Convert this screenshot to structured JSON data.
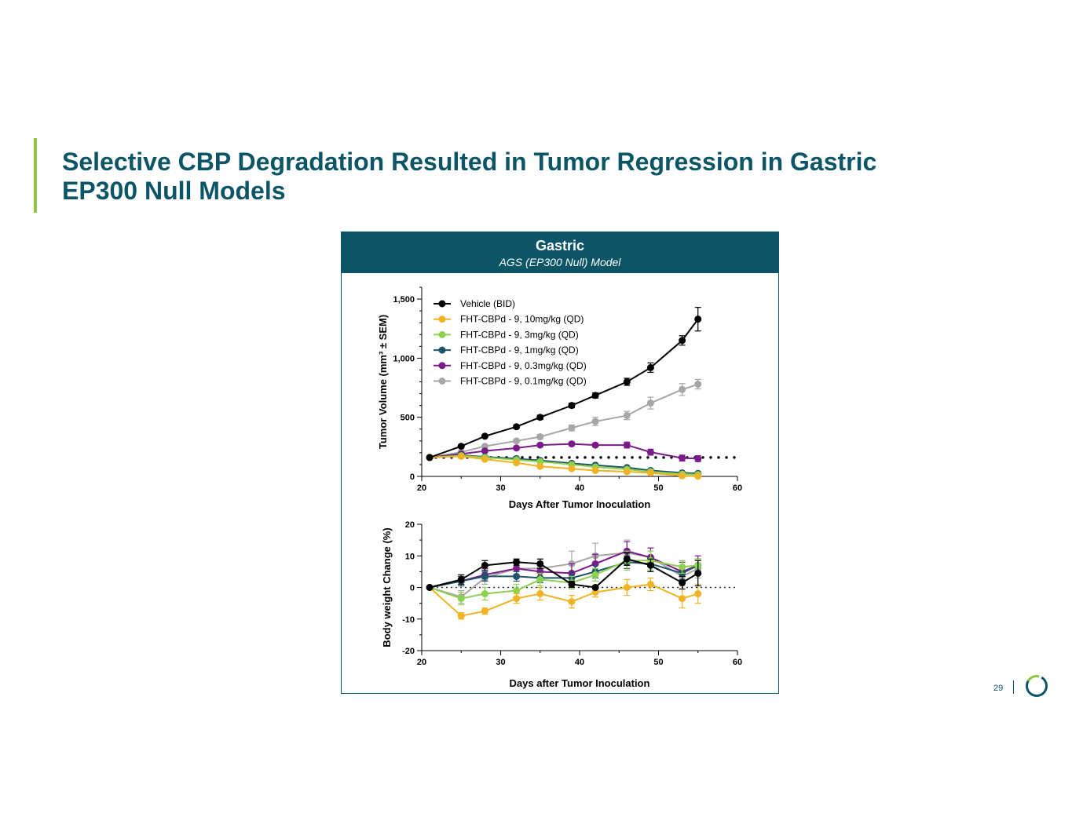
{
  "slide": {
    "title_line1": "Selective CBP Degradation Resulted in Tumor Regression in Gastric",
    "title_line2": "EP300 Null Models",
    "page_number": "29",
    "accent_color": "#8dc63f",
    "brand_color": "#0c5566",
    "logo_icon": "ring-logo-icon"
  },
  "panel": {
    "title": "Gastric",
    "subtitle": "AGS (EP300 Null) Model"
  },
  "chart_data": [
    {
      "type": "line",
      "xlabel": "Days After Tumor Inoculation",
      "ylabel": "Tumor Volume (mm³ ± SEM)",
      "xlim": [
        20,
        60
      ],
      "ylim": [
        0,
        1600
      ],
      "xticks": [
        "20",
        "30",
        "40",
        "50",
        "60"
      ],
      "yticks": [
        {
          "v": 0,
          "label": "0"
        },
        {
          "v": 500,
          "label": "500"
        },
        {
          "v": 1000,
          "label": "1,000"
        },
        {
          "v": 1500,
          "label": "1,500"
        }
      ],
      "reference_line": 160,
      "legend_position": "top-left",
      "x": [
        21,
        25,
        28,
        32,
        35,
        39,
        42,
        46,
        49,
        53,
        55
      ],
      "series": [
        {
          "name": "Vehicle (BID)",
          "color": "#000000",
          "values": [
            160,
            255,
            340,
            420,
            500,
            600,
            685,
            800,
            920,
            1150,
            1330
          ],
          "errors": [
            0,
            10,
            12,
            15,
            18,
            20,
            22,
            30,
            40,
            40,
            100
          ]
        },
        {
          "name": "FHT-CBPd - 9, 10mg/kg (QD)",
          "color": "#f0b323",
          "values": [
            160,
            170,
            145,
            115,
            85,
            65,
            50,
            40,
            30,
            5,
            2
          ],
          "errors": [
            0,
            8,
            8,
            8,
            8,
            6,
            6,
            5,
            5,
            3,
            2
          ]
        },
        {
          "name": "FHT-CBPd - 9, 3mg/kg (QD)",
          "color": "#8dd14f",
          "values": [
            160,
            175,
            160,
            140,
            125,
            100,
            80,
            60,
            40,
            20,
            15
          ],
          "errors": [
            0,
            8,
            8,
            8,
            8,
            6,
            6,
            5,
            5,
            3,
            2
          ]
        },
        {
          "name": "FHT-CBPd - 9, 1mg/kg (QD)",
          "color": "#1e5467",
          "values": [
            160,
            180,
            165,
            150,
            135,
            110,
            95,
            75,
            50,
            30,
            25
          ],
          "errors": [
            0,
            8,
            8,
            8,
            8,
            6,
            6,
            5,
            5,
            3,
            2
          ]
        },
        {
          "name": "FHT-CBPd - 9, 0.3mg/kg (QD)",
          "color": "#7b1a8a",
          "values": [
            160,
            190,
            215,
            240,
            265,
            275,
            265,
            265,
            205,
            155,
            150
          ],
          "errors": [
            0,
            10,
            10,
            12,
            12,
            15,
            15,
            25,
            25,
            25,
            25
          ]
        },
        {
          "name": "FHT-CBPd - 9, 0.1mg/kg (QD)",
          "color": "#a6a6a6",
          "values": [
            160,
            205,
            255,
            300,
            335,
            410,
            465,
            515,
            620,
            735,
            780
          ],
          "errors": [
            0,
            10,
            12,
            15,
            18,
            25,
            35,
            35,
            50,
            50,
            40
          ]
        }
      ]
    },
    {
      "type": "line",
      "xlabel": "Days after Tumor Inoculation",
      "ylabel": "Body weight Change (%)",
      "xlim": [
        20,
        60
      ],
      "ylim": [
        -20,
        20
      ],
      "xticks": [
        "20",
        "30",
        "40",
        "50",
        "60"
      ],
      "yticks": [
        {
          "v": -20,
          "label": "-20"
        },
        {
          "v": -10,
          "label": "-10"
        },
        {
          "v": 0,
          "label": "0"
        },
        {
          "v": 10,
          "label": "10"
        },
        {
          "v": 20,
          "label": "20"
        }
      ],
      "reference_line": 0,
      "x": [
        21,
        25,
        28,
        32,
        35,
        39,
        42,
        46,
        49,
        53,
        55
      ],
      "series": [
        {
          "name": "Vehicle (BID)",
          "color": "#000000",
          "values": [
            0,
            2.5,
            7,
            8,
            7.5,
            1,
            0,
            9,
            7,
            1.5,
            4.5
          ],
          "errors": [
            0,
            1.5,
            1.5,
            1,
            1.5,
            1,
            0.5,
            2,
            2,
            2,
            4
          ]
        },
        {
          "name": "FHT-CBPd - 9, 10mg/kg (QD)",
          "color": "#f0b323",
          "values": [
            0,
            -9,
            -7.5,
            -3.5,
            -2,
            -4.5,
            -1.5,
            0,
            1,
            -3.5,
            -2
          ],
          "errors": [
            0,
            1,
            1,
            1.5,
            2,
            2,
            1.5,
            2.5,
            2,
            3,
            3
          ]
        },
        {
          "name": "FHT-CBPd - 9, 3mg/kg (QD)",
          "color": "#8dd14f",
          "values": [
            0,
            -3.5,
            -2,
            -1,
            2.5,
            1.5,
            4,
            8.5,
            8.5,
            6.5,
            7
          ],
          "errors": [
            0,
            2,
            2,
            2,
            2,
            2,
            2,
            3,
            3,
            2,
            2
          ]
        },
        {
          "name": "FHT-CBPd - 9, 1mg/kg (QD)",
          "color": "#1e5467",
          "values": [
            0,
            2,
            3.5,
            3.5,
            3,
            3,
            5,
            8,
            7.5,
            4.5,
            7
          ],
          "errors": [
            0,
            1.5,
            1.5,
            1.5,
            1.5,
            2,
            2,
            2,
            2,
            2,
            2
          ]
        },
        {
          "name": "FHT-CBPd - 9, 0.3mg/kg (QD)",
          "color": "#7b1a8a",
          "values": [
            0,
            2,
            4,
            6,
            5,
            4.5,
            7.5,
            11.5,
            9.5,
            5,
            7
          ],
          "errors": [
            0,
            1.5,
            2,
            2,
            2,
            3,
            3,
            3,
            3,
            3,
            3
          ]
        },
        {
          "name": "FHT-CBPd - 9, 0.1mg/kg (QD)",
          "color": "#a6a6a6",
          "values": [
            0,
            -3,
            3,
            6,
            6,
            7.5,
            10,
            11,
            9.5,
            3.5,
            6
          ],
          "errors": [
            0,
            2,
            2,
            3,
            3,
            4,
            4,
            4,
            3,
            3,
            3
          ]
        }
      ]
    }
  ]
}
